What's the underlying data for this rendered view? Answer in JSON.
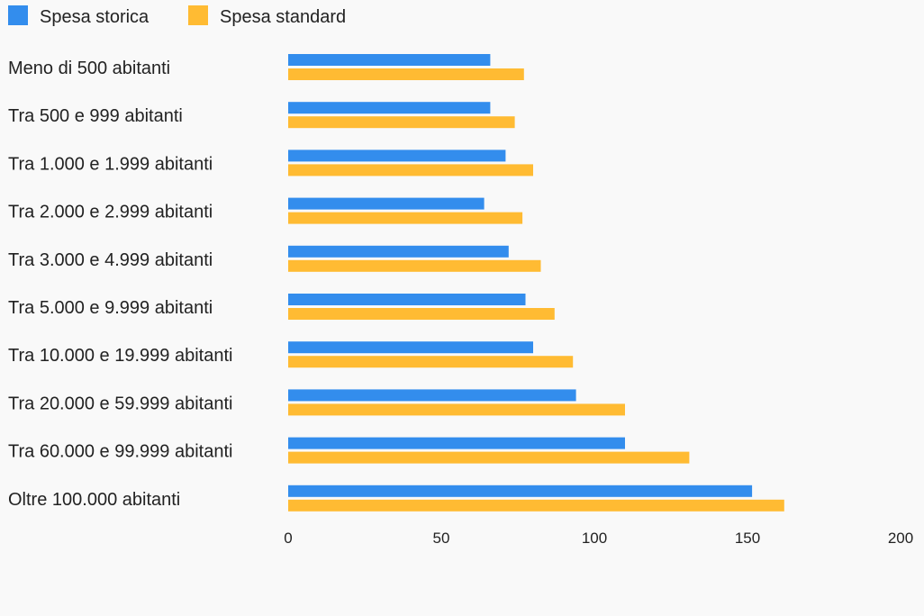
{
  "chart_data": {
    "type": "bar",
    "orientation": "horizontal",
    "categories": [
      "Meno di 500 abitanti",
      "Tra 500 e 999 abitanti",
      "Tra 1.000 e 1.999 abitanti",
      "Tra 2.000 e 2.999 abitanti",
      "Tra 3.000 e 4.999 abitanti",
      "Tra 5.000 e 9.999 abitanti",
      "Tra 10.000 e 19.999 abitanti",
      "Tra 20.000 e 59.999 abitanti",
      "Tra 60.000 e 99.999 abitanti",
      "Oltre 100.000 abitanti"
    ],
    "series": [
      {
        "name": "Spesa storica",
        "color": "#338ded",
        "values": [
          66,
          66,
          71,
          64,
          72,
          77.5,
          80,
          94,
          110,
          151.5
        ]
      },
      {
        "name": "Spesa standard",
        "color": "#ffbb33",
        "values": [
          77,
          74,
          80,
          76.5,
          82.5,
          87,
          93,
          110,
          131,
          162
        ]
      }
    ],
    "xlim": [
      0,
      200
    ],
    "x_ticks": [
      "0",
      "50",
      "100",
      "150",
      "200"
    ],
    "legend_position": "top-left",
    "grid": false
  }
}
